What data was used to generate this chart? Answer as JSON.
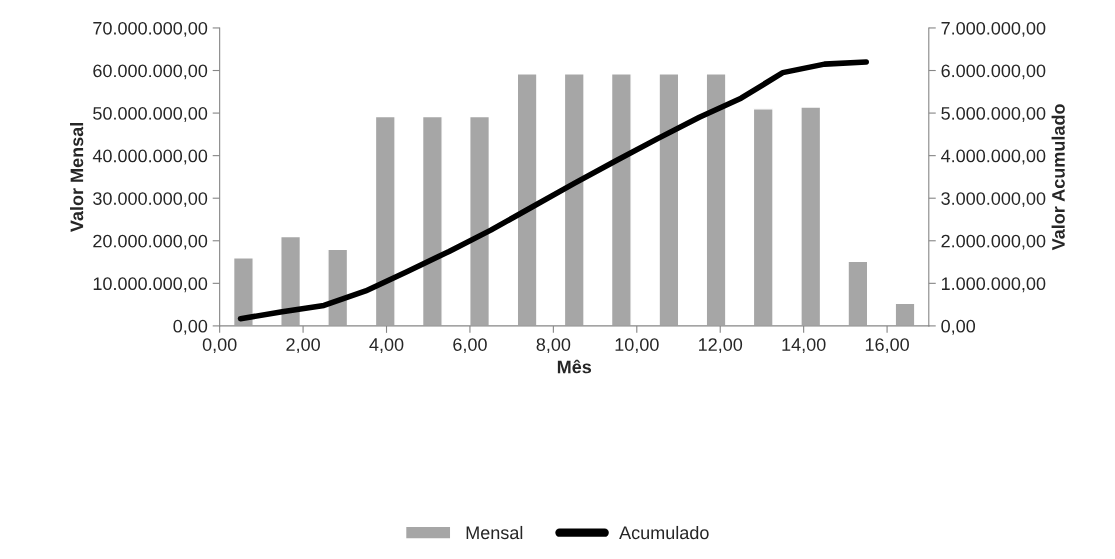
{
  "chart_data": {
    "type": "bar",
    "xlabel": "Mês",
    "ylabel": "Valor Mensal",
    "y2label": "Valor Acumulado",
    "series": [
      {
        "name": "Mensal",
        "color": "#a6a6a6",
        "x": [
          0.57,
          1.7,
          2.83,
          3.97,
          5.1,
          6.23,
          7.37,
          8.5,
          9.63,
          10.77,
          11.9,
          13.03,
          14.17,
          15.3,
          16.43
        ],
        "values": [
          16000000,
          21000000,
          18000000,
          49200000,
          49200000,
          49200000,
          59200000,
          59200000,
          59200000,
          59200000,
          59200000,
          51000000,
          51400000,
          15200000,
          5300000
        ]
      },
      {
        "name": "Acumulado",
        "type": "line",
        "axis": "y2",
        "color": "#000000",
        "x": [
          0.5,
          1.5,
          2.5,
          3.5,
          4.5,
          5.5,
          6.5,
          7.5,
          8.5,
          9.5,
          10.5,
          11.5,
          12.5,
          13.5,
          14.5,
          15.5
        ],
        "values": [
          170000,
          330000,
          480000,
          820000,
          1280000,
          1750000,
          2250000,
          2800000,
          3350000,
          3880000,
          4400000,
          4900000,
          5350000,
          5950000,
          6150000,
          6200000
        ]
      }
    ],
    "xlim": [
      0,
      17
    ],
    "xticks": [
      {
        "value": 0,
        "label": "0,00"
      },
      {
        "value": 2,
        "label": "2,00"
      },
      {
        "value": 4,
        "label": "4,00"
      },
      {
        "value": 6,
        "label": "6,00"
      },
      {
        "value": 8,
        "label": "8,00"
      },
      {
        "value": 10,
        "label": "10,00"
      },
      {
        "value": 12,
        "label": "12,00"
      },
      {
        "value": 14,
        "label": "14,00"
      },
      {
        "value": 16,
        "label": "16,00"
      }
    ],
    "ylim": [
      0,
      70000000
    ],
    "yticks": [
      {
        "value": 0,
        "label": "0,00"
      },
      {
        "value": 10000000,
        "label": "10.000.000,00"
      },
      {
        "value": 20000000,
        "label": "20.000.000,00"
      },
      {
        "value": 30000000,
        "label": "30.000.000,00"
      },
      {
        "value": 40000000,
        "label": "40.000.000,00"
      },
      {
        "value": 50000000,
        "label": "50.000.000,00"
      },
      {
        "value": 60000000,
        "label": "60.000.000,00"
      },
      {
        "value": 70000000,
        "label": "70.000.000,00"
      }
    ],
    "y2lim": [
      0,
      7000000
    ],
    "y2ticks": [
      {
        "value": 0,
        "label": "0,00"
      },
      {
        "value": 1000000,
        "label": "1.000.000,00"
      },
      {
        "value": 2000000,
        "label": "2.000.000,00"
      },
      {
        "value": 3000000,
        "label": "3.000.000,00"
      },
      {
        "value": 4000000,
        "label": "4.000.000,00"
      },
      {
        "value": 5000000,
        "label": "5.000.000,00"
      },
      {
        "value": 6000000,
        "label": "6.000.000,00"
      },
      {
        "value": 7000000,
        "label": "7.000.000,00"
      }
    ],
    "grid": false,
    "legend": "bottom",
    "marker": "none",
    "line_style": "solid"
  }
}
